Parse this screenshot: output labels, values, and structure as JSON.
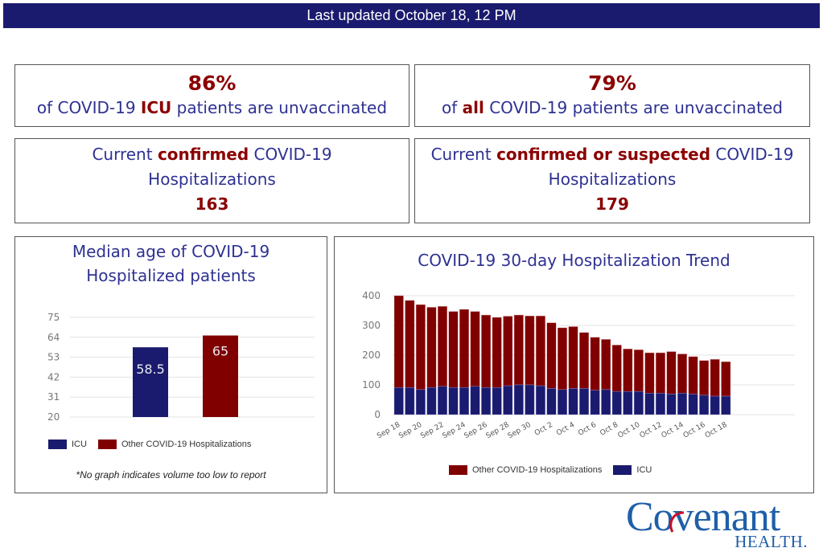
{
  "banner": {
    "text": "Last updated October 18, 12 PM"
  },
  "cards": {
    "icu_unvax": {
      "value": "86%",
      "pre": "of COVID-19 ",
      "emph": "ICU",
      "post": " patients are unvaccinated"
    },
    "all_unvax": {
      "value": "79%",
      "pre": "of ",
      "emph": "all",
      "post": " COVID-19 patients are unvaccinated"
    },
    "confirmed": {
      "pre": "Current ",
      "emph": "confirmed",
      "post": " COVID-19",
      "line2": "Hospitalizations",
      "value": "163"
    },
    "suspected": {
      "pre": "Current ",
      "emph": "confirmed or suspected",
      "post": " COVID-19",
      "line2": "Hospitalizations",
      "value": "179"
    }
  },
  "colors": {
    "icu": "#1a1a6e",
    "other": "#800000",
    "title": "#2e3192",
    "accent": "#8b0000",
    "banner": "#1a1a6e"
  },
  "age_panel": {
    "title_line1": "Median age of COVID-19",
    "title_line2": "Hospitalized patients",
    "legend": [
      "ICU",
      "Other COVID-19 Hospitalizations"
    ],
    "footnote": "*No graph indicates volume too low to report"
  },
  "trend_panel": {
    "title": "COVID-19 30-day Hospitalization Trend",
    "legend": [
      "Other COVID-19 Hospitalizations",
      "ICU"
    ]
  },
  "logo": {
    "main": "Covenant",
    "sub": "HEALTH."
  },
  "chart_data": [
    {
      "type": "bar",
      "title": "Median age of COVID-19 Hospitalized patients",
      "categories": [
        "ICU",
        "Other COVID-19 Hospitalizations"
      ],
      "values": [
        58.5,
        65
      ],
      "labels": [
        "58.5",
        "65"
      ],
      "yticks": [
        20,
        31,
        42,
        53,
        64,
        75
      ],
      "ylim": [
        20,
        75
      ],
      "grid": true,
      "legend": "bottom"
    },
    {
      "type": "bar",
      "stacked": true,
      "title": "COVID-19 30-day Hospitalization Trend",
      "x": [
        "Sep 18",
        "Sep 19",
        "Sep 20",
        "Sep 21",
        "Sep 22",
        "Sep 23",
        "Sep 24",
        "Sep 25",
        "Sep 26",
        "Sep 27",
        "Sep 28",
        "Sep 29",
        "Sep 30",
        "Oct 1",
        "Oct 2",
        "Oct 3",
        "Oct 4",
        "Oct 5",
        "Oct 6",
        "Oct 7",
        "Oct 8",
        "Oct 9",
        "Oct 10",
        "Oct 11",
        "Oct 12",
        "Oct 13",
        "Oct 14",
        "Oct 15",
        "Oct 16",
        "Oct 17",
        "Oct 18"
      ],
      "xtick_labels": [
        "Sep 18",
        "Sep 20",
        "Sep 22",
        "Sep 24",
        "Sep 26",
        "Sep 28",
        "Sep 30",
        "Oct 2",
        "Oct 4",
        "Oct 6",
        "Oct 8",
        "Oct 10",
        "Oct 12",
        "Oct 14",
        "Oct 16",
        "Oct 18"
      ],
      "series": [
        {
          "name": "ICU",
          "values": [
            91,
            91,
            84,
            91,
            95,
            91,
            91,
            95,
            91,
            91,
            97,
            100,
            100,
            97,
            88,
            84,
            88,
            88,
            82,
            84,
            78,
            78,
            78,
            72,
            72,
            69,
            72,
            69,
            65,
            62,
            62
          ]
        },
        {
          "name": "Other COVID-19 Hospitalizations",
          "values": [
            309,
            293,
            286,
            270,
            269,
            256,
            263,
            252,
            244,
            236,
            234,
            235,
            232,
            235,
            221,
            208,
            208,
            188,
            178,
            169,
            156,
            143,
            140,
            136,
            136,
            143,
            132,
            126,
            117,
            124,
            116
          ]
        }
      ],
      "totals": [
        400,
        384,
        370,
        361,
        364,
        347,
        354,
        347,
        335,
        327,
        331,
        335,
        332,
        332,
        309,
        292,
        296,
        276,
        260,
        253,
        234,
        221,
        218,
        208,
        208,
        212,
        204,
        195,
        182,
        186,
        178
      ],
      "yticks": [
        0,
        100,
        200,
        300,
        400
      ],
      "ylim": [
        0,
        400
      ],
      "grid": true,
      "legend": "bottom"
    }
  ]
}
